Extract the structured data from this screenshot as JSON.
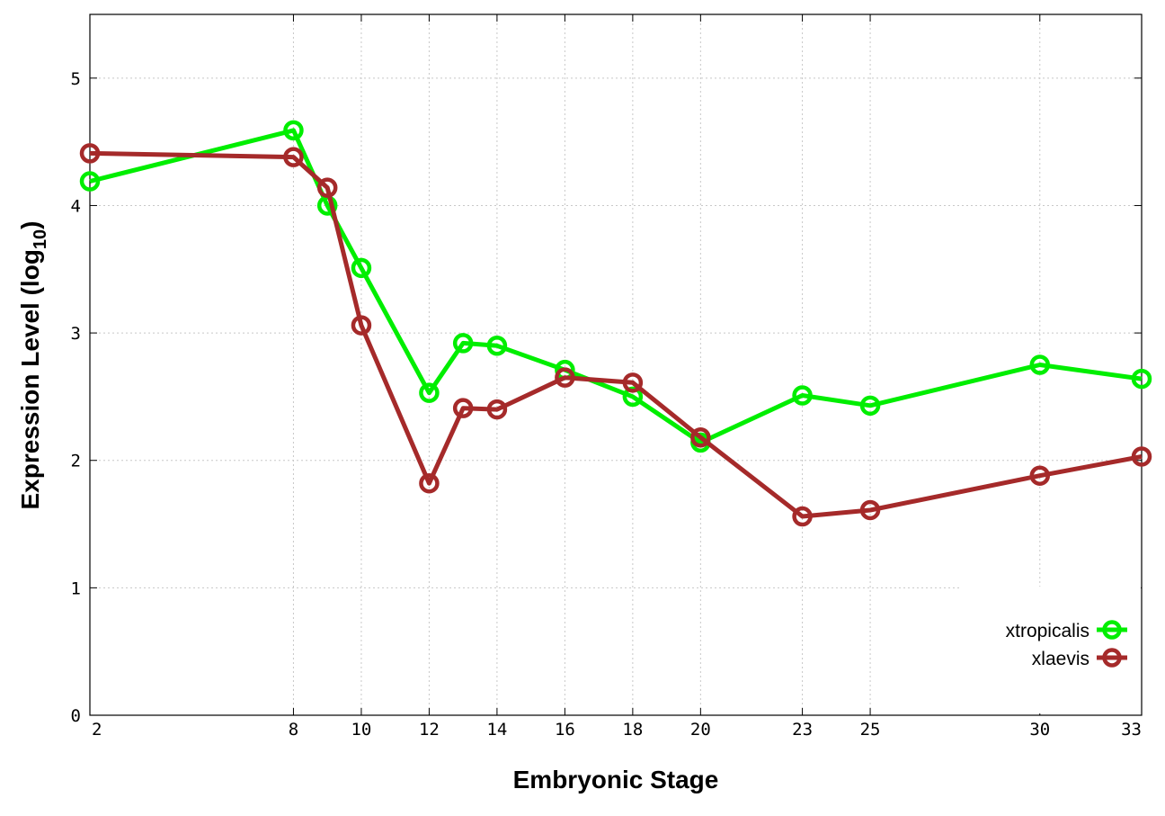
{
  "chart_data": {
    "type": "line",
    "xlabel": "Embryonic Stage",
    "ylabel_main": "Expression Level (log",
    "ylabel_sub": "10",
    "ylabel_close": ")",
    "x_ticks": [
      2,
      8,
      10,
      12,
      14,
      16,
      18,
      20,
      23,
      25,
      30,
      33
    ],
    "y_ticks": [
      0,
      1,
      2,
      3,
      4,
      5
    ],
    "xlim": [
      2,
      33
    ],
    "ylim": [
      0,
      5.5
    ],
    "grid": true,
    "legend_position": "bottom-right",
    "x": [
      2,
      8,
      9,
      10,
      12,
      13,
      14,
      16,
      18,
      20,
      23,
      25,
      30,
      33
    ],
    "series": [
      {
        "name": "xtropicalis",
        "color": "#00ee00",
        "values": [
          4.19,
          4.59,
          4.0,
          3.51,
          2.53,
          2.92,
          2.9,
          2.71,
          2.5,
          2.14,
          2.51,
          2.43,
          2.75,
          2.64
        ]
      },
      {
        "name": "xlaevis",
        "color": "#a52a2a",
        "values": [
          4.41,
          4.38,
          4.14,
          3.06,
          1.82,
          2.41,
          2.4,
          2.65,
          2.61,
          2.18,
          1.56,
          1.61,
          1.88,
          2.03
        ]
      }
    ]
  }
}
